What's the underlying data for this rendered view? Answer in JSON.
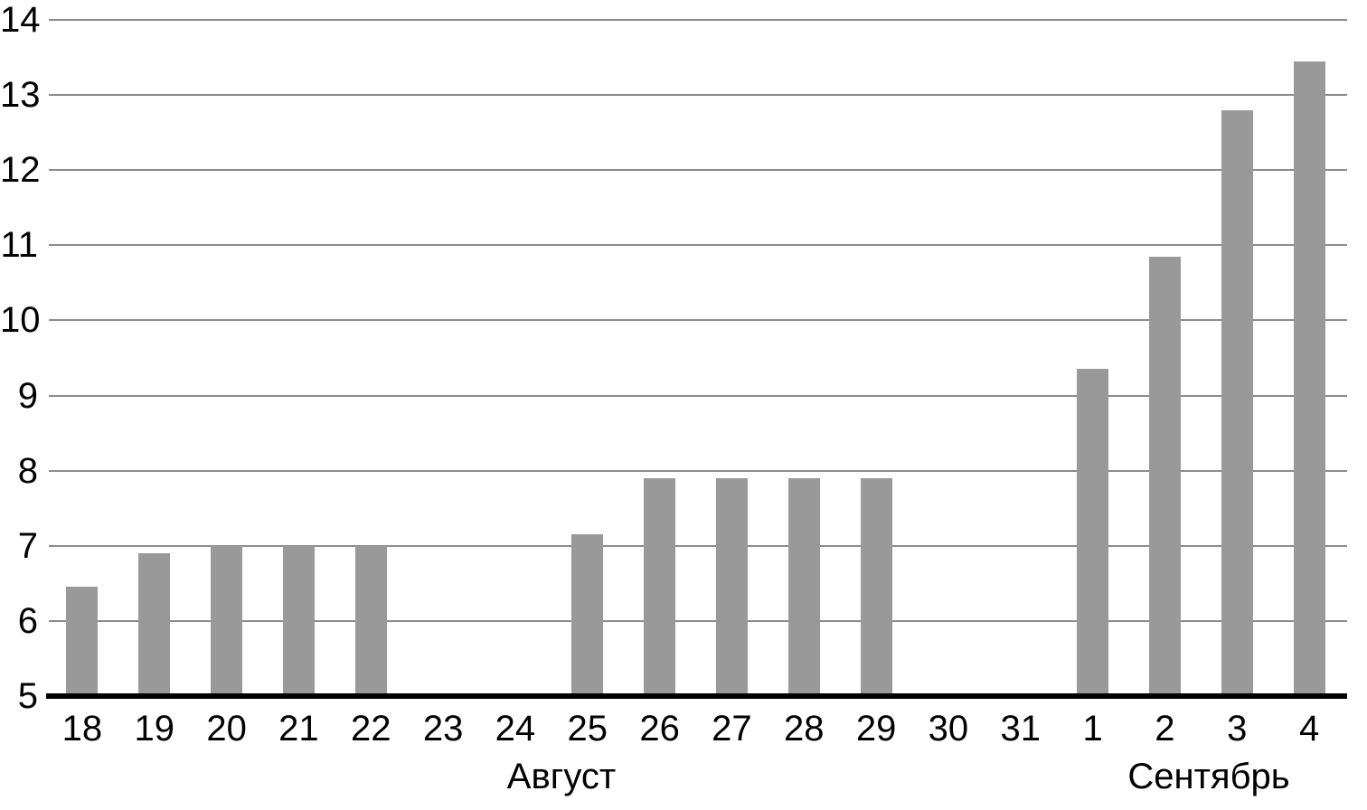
{
  "chart_data": {
    "type": "bar",
    "categories": [
      "18",
      "19",
      "20",
      "21",
      "22",
      "23",
      "24",
      "25",
      "26",
      "27",
      "28",
      "29",
      "30",
      "31",
      "1",
      "2",
      "3",
      "4"
    ],
    "values": [
      6.45,
      6.9,
      7.0,
      7.0,
      7.0,
      null,
      null,
      7.15,
      7.9,
      7.9,
      7.9,
      7.9,
      null,
      null,
      9.35,
      10.85,
      12.8,
      13.45
    ],
    "title": "",
    "xlabel": "",
    "ylabel": "",
    "ylim": [
      5,
      14
    ],
    "yticks": [
      5,
      6,
      7,
      8,
      9,
      10,
      11,
      12,
      13,
      14
    ],
    "month_labels": [
      {
        "text": "Август"
      },
      {
        "text": "Сентябрь"
      }
    ],
    "grid": "horizontal",
    "legend": "none",
    "bar_color": "#999999",
    "gridline_color": "#8c8c8c",
    "axis_color": "#000000",
    "text_color": "#000000"
  }
}
